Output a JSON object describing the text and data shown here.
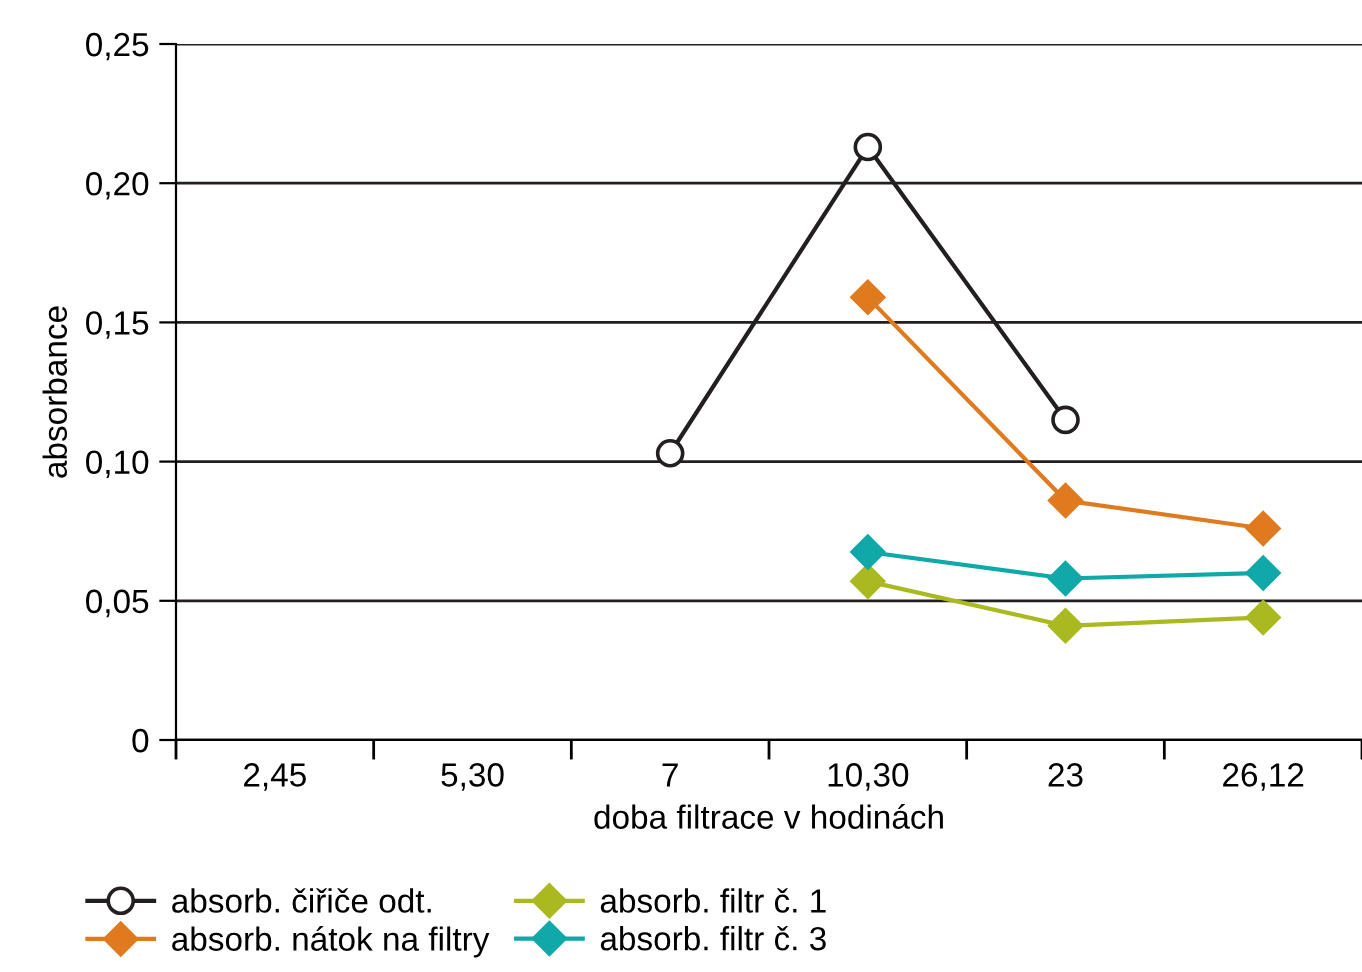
{
  "chart_data": {
    "type": "line",
    "xlabel": "doba filtrace v hodinách",
    "ylabel": "absorbance",
    "categories": [
      "2,45",
      "5,30",
      "7",
      "10,30",
      "23",
      "26,12"
    ],
    "series": [
      {
        "name": "absorb. čiřiče odt.",
        "color": "#231f20",
        "marker": "circle",
        "values": [
          null,
          null,
          0.103,
          0.213,
          0.115,
          null
        ]
      },
      {
        "name": "absorb. nátok na filtry",
        "color": "#e07a1f",
        "marker": "diamond",
        "values": [
          null,
          null,
          null,
          0.159,
          0.086,
          0.076
        ]
      },
      {
        "name": "absorb. filtr č. 1",
        "color": "#a9b91f",
        "marker": "diamond",
        "values": [
          null,
          null,
          null,
          0.057,
          0.041,
          0.044
        ]
      },
      {
        "name": "absorb. filtr č. 3",
        "color": "#10a8a8",
        "marker": "diamond",
        "values": [
          null,
          null,
          null,
          0.0675,
          0.058,
          0.06
        ]
      }
    ],
    "ylim": [
      0,
      0.25
    ],
    "yticks": [
      0,
      {
        "value": 0.05,
        "label": "0,05"
      },
      {
        "value": 0.1,
        "label": "0,10"
      },
      {
        "value": 0.15,
        "label": "0,15"
      },
      {
        "value": 0.2,
        "label": "0,20"
      },
      {
        "value": 0.25,
        "label": "0,25"
      }
    ],
    "grid": "y",
    "legend": "bottom",
    "line_style": "solid"
  }
}
